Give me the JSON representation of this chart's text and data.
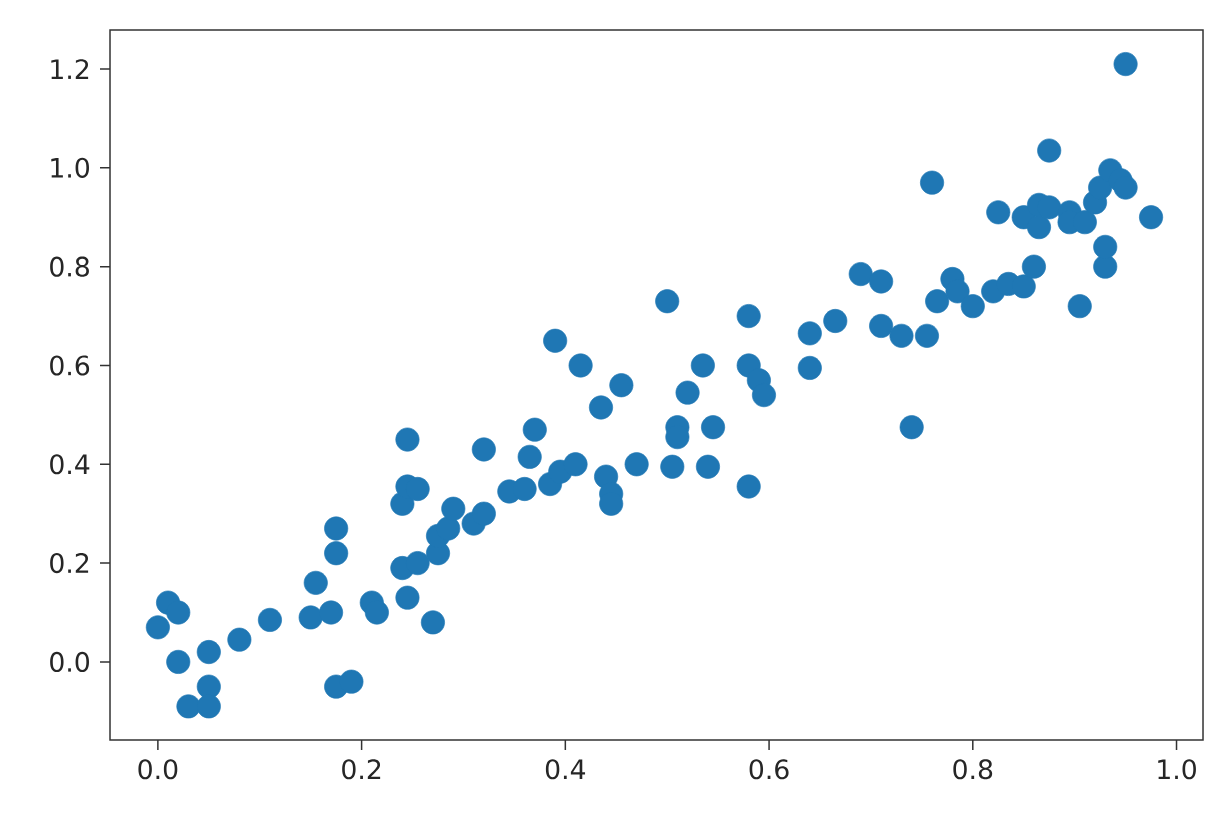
{
  "chart_data": {
    "type": "scatter",
    "color": "#1f77b4",
    "marker": "circle",
    "grid": false,
    "xlim": [
      -0.047,
      1.026
    ],
    "ylim": [
      -0.158,
      1.279
    ],
    "xticks": [
      {
        "value": 0,
        "label": "0.0"
      },
      {
        "value": 0.2,
        "label": "0.2"
      },
      {
        "value": 0.4,
        "label": "0.4"
      },
      {
        "value": 0.6,
        "label": "0.6"
      },
      {
        "value": 0.8,
        "label": "0.8"
      },
      {
        "value": 1,
        "label": "1.0"
      }
    ],
    "yticks": [
      {
        "value": 0,
        "label": "0.0"
      },
      {
        "value": 0.2,
        "label": "0.2"
      },
      {
        "value": 0.4,
        "label": "0.4"
      },
      {
        "value": 0.6,
        "label": "0.6"
      },
      {
        "value": 0.8,
        "label": "0.8"
      },
      {
        "value": 1,
        "label": "1.0"
      },
      {
        "value": 1.2,
        "label": "1.2"
      }
    ],
    "x": [
      0.0,
      0.01,
      0.02,
      0.02,
      0.03,
      0.05,
      0.05,
      0.05,
      0.08,
      0.11,
      0.15,
      0.155,
      0.17,
      0.175,
      0.175,
      0.175,
      0.19,
      0.21,
      0.215,
      0.24,
      0.24,
      0.245,
      0.245,
      0.245,
      0.255,
      0.255,
      0.27,
      0.275,
      0.275,
      0.285,
      0.29,
      0.31,
      0.32,
      0.32,
      0.345,
      0.36,
      0.365,
      0.37,
      0.385,
      0.39,
      0.395,
      0.41,
      0.415,
      0.435,
      0.44,
      0.445,
      0.445,
      0.455,
      0.47,
      0.5,
      0.505,
      0.51,
      0.51,
      0.52,
      0.535,
      0.54,
      0.545,
      0.58,
      0.58,
      0.58,
      0.59,
      0.595,
      0.64,
      0.64,
      0.665,
      0.69,
      0.71,
      0.71,
      0.73,
      0.74,
      0.755,
      0.76,
      0.765,
      0.78,
      0.785,
      0.8,
      0.82,
      0.825,
      0.835,
      0.85,
      0.85,
      0.86,
      0.865,
      0.865,
      0.875,
      0.875,
      0.895,
      0.895,
      0.905,
      0.91,
      0.92,
      0.925,
      0.93,
      0.93,
      0.935,
      0.945,
      0.95,
      0.95,
      0.975
    ],
    "values": [
      0.07,
      0.12,
      0.1,
      0.0,
      -0.09,
      -0.05,
      -0.09,
      0.02,
      0.045,
      0.085,
      0.09,
      0.16,
      0.1,
      0.27,
      0.22,
      -0.05,
      -0.04,
      0.12,
      0.1,
      0.32,
      0.19,
      0.13,
      0.45,
      0.355,
      0.35,
      0.2,
      0.08,
      0.22,
      0.255,
      0.27,
      0.31,
      0.28,
      0.3,
      0.43,
      0.345,
      0.35,
      0.415,
      0.47,
      0.36,
      0.65,
      0.385,
      0.4,
      0.6,
      0.515,
      0.375,
      0.34,
      0.32,
      0.56,
      0.4,
      0.73,
      0.395,
      0.475,
      0.455,
      0.545,
      0.6,
      0.395,
      0.475,
      0.7,
      0.6,
      0.355,
      0.57,
      0.54,
      0.665,
      0.595,
      0.69,
      0.785,
      0.77,
      0.68,
      0.66,
      0.475,
      0.66,
      0.97,
      0.73,
      0.775,
      0.75,
      0.72,
      0.75,
      0.91,
      0.765,
      0.76,
      0.9,
      0.8,
      0.88,
      0.925,
      1.035,
      0.92,
      0.91,
      0.89,
      0.72,
      0.89,
      0.93,
      0.96,
      0.8,
      0.84,
      0.995,
      0.975,
      0.96,
      1.21,
      0.9
    ]
  }
}
